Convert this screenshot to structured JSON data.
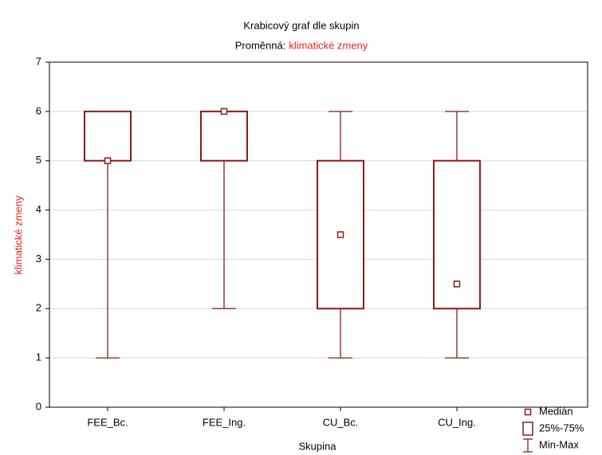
{
  "chart_data": {
    "type": "box",
    "title": "Krabicový graf dle skupin",
    "subtitle": "Proměnná:",
    "variable": "klimatické zmeny",
    "x_label": "Skupina",
    "y_label": "klimatické zmeny",
    "categories": [
      "FEE_Bc.",
      "FEE_Ing.",
      "CU_Bc.",
      "CU_Ing."
    ],
    "median": [
      5,
      6,
      3.5,
      2.5
    ],
    "q1": [
      5,
      5,
      2,
      2
    ],
    "q3": [
      6,
      6,
      5,
      5
    ],
    "min": [
      1,
      2,
      1,
      1
    ],
    "max": [
      6,
      6,
      6,
      6
    ],
    "color": "#8b1a1a",
    "label_color": "#e8261c",
    "ylim": [
      0,
      7
    ],
    "yticks": [
      0,
      1,
      2,
      3,
      4,
      5,
      6,
      7
    ],
    "grid": true,
    "legend": [
      "Medián",
      "25%-75%",
      "Min-Max"
    ],
    "legend_position": "bottom-right"
  }
}
